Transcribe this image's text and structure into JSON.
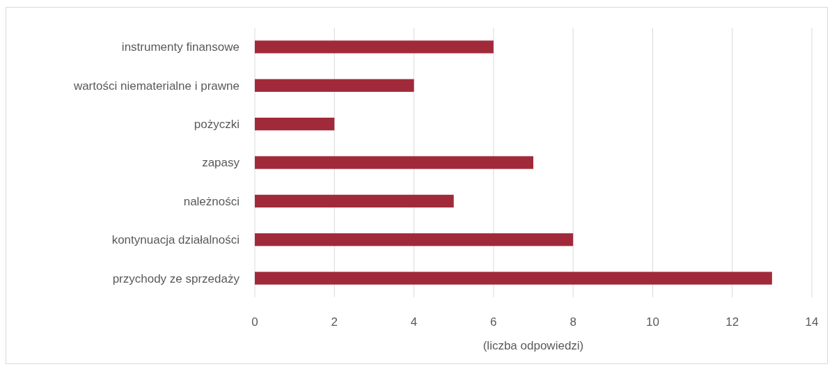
{
  "chart_data": {
    "type": "bar",
    "orientation": "horizontal",
    "xlabel": "(liczba odpowiedzi)",
    "categories": [
      "instrumenty finansowe",
      "wartości niematerialne i prawne",
      "pożyczki",
      "zapasy",
      "należności",
      "kontynuacja działalności",
      "przychody ze sprzedaży"
    ],
    "values": [
      6,
      4,
      2,
      7,
      5,
      8,
      13
    ],
    "color": "#a12a3a",
    "xlim": [
      0,
      14
    ],
    "xticks": [
      0,
      2,
      4,
      6,
      8,
      10,
      12,
      14
    ],
    "grid": "x"
  }
}
